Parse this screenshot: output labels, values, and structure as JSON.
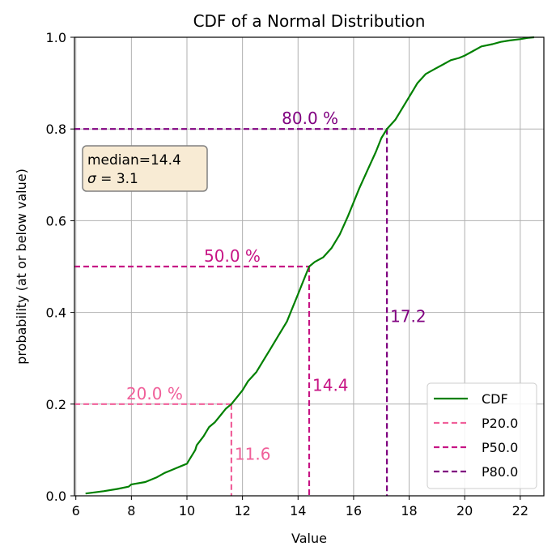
{
  "chart_data": {
    "type": "line",
    "title": "CDF of a Normal Distribution",
    "xlabel": "Value",
    "ylabel": "probability (at or below value)",
    "xlim": [
      5.95,
      22.85
    ],
    "ylim": [
      0,
      1
    ],
    "xticks": [
      6,
      8,
      10,
      12,
      14,
      16,
      18,
      20,
      22
    ],
    "xtick_labels": [
      "6",
      "8",
      "10",
      "12",
      "14",
      "16",
      "18",
      "20",
      "22"
    ],
    "yticks": [
      0,
      0.2,
      0.4,
      0.6,
      0.8,
      1.0
    ],
    "ytick_labels": [
      "0.0",
      "0.2",
      "0.4",
      "0.6",
      "0.8",
      "1.0"
    ],
    "grid": true,
    "legend_position": "lower-right",
    "stats_box": {
      "line1": "median=14.4",
      "line2_symbol": "σ",
      "line2_rest": " = 3.1"
    },
    "series": [
      {
        "name": "CDF",
        "color": "#008000",
        "style": "solid",
        "x": [
          6.35,
          7.0,
          7.5,
          7.9,
          8.0,
          8.5,
          8.9,
          9.2,
          9.4,
          9.6,
          9.8,
          10.0,
          10.05,
          10.3,
          10.35,
          10.6,
          10.8,
          11.0,
          11.2,
          11.4,
          11.6,
          11.8,
          12.0,
          12.2,
          12.5,
          12.8,
          13.0,
          13.3,
          13.6,
          13.8,
          14.0,
          14.2,
          14.4,
          14.6,
          14.9,
          15.2,
          15.5,
          15.8,
          16.0,
          16.2,
          16.5,
          16.8,
          17.0,
          17.2,
          17.5,
          17.8,
          18.0,
          18.3,
          18.6,
          18.9,
          19.2,
          19.5,
          19.8,
          20.0,
          20.3,
          20.6,
          21.0,
          21.3,
          21.6,
          22.0,
          22.3,
          22.5
        ],
        "y": [
          0.005,
          0.01,
          0.015,
          0.02,
          0.025,
          0.03,
          0.04,
          0.05,
          0.055,
          0.06,
          0.065,
          0.07,
          0.075,
          0.1,
          0.11,
          0.13,
          0.15,
          0.16,
          0.175,
          0.19,
          0.2,
          0.215,
          0.23,
          0.25,
          0.27,
          0.3,
          0.32,
          0.35,
          0.38,
          0.41,
          0.44,
          0.47,
          0.5,
          0.51,
          0.52,
          0.54,
          0.57,
          0.61,
          0.64,
          0.67,
          0.71,
          0.75,
          0.78,
          0.8,
          0.82,
          0.85,
          0.87,
          0.9,
          0.92,
          0.93,
          0.94,
          0.95,
          0.955,
          0.96,
          0.97,
          0.98,
          0.985,
          0.99,
          0.993,
          0.996,
          0.999,
          1.0
        ]
      },
      {
        "name": "P20.0",
        "color": "#f0609a",
        "style": "dashed",
        "x_value": 11.6,
        "y_value": 0.2,
        "value_label": "11.6",
        "percent_label": "20.0 %"
      },
      {
        "name": "P50.0",
        "color": "#c71585",
        "style": "dashed",
        "x_value": 14.4,
        "y_value": 0.5,
        "value_label": "14.4",
        "percent_label": "50.0 %"
      },
      {
        "name": "P80.0",
        "color": "#800080",
        "style": "dashed",
        "x_value": 17.2,
        "y_value": 0.8,
        "value_label": "17.2",
        "percent_label": "80.0 %"
      }
    ]
  }
}
